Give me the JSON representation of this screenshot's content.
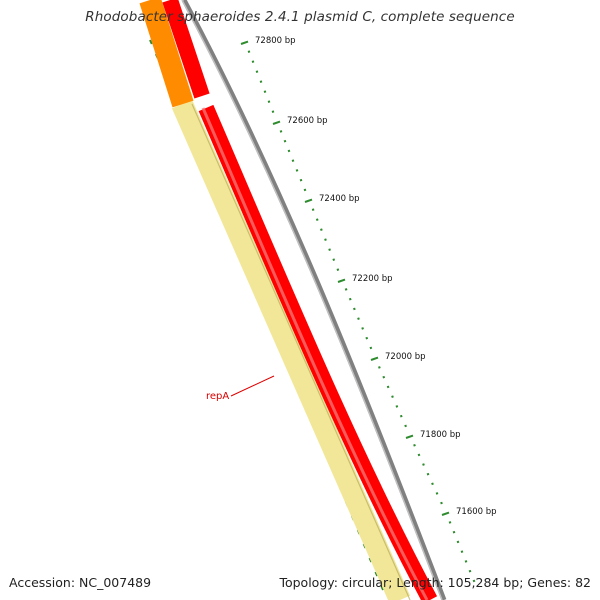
{
  "title": "Rhodobacter sphaeroides 2.4.1 plasmid C, complete sequence",
  "footer": {
    "accession": "Accession: NC_007489",
    "summary": "Topology: circular; Length: 105,284 bp; Genes: 82"
  },
  "scale_labels": [
    "72800 bp",
    "72600 bp",
    "72400 bp",
    "72200 bp",
    "72000 bp",
    "71800 bp",
    "71600 bp"
  ],
  "genes": [
    {
      "name": "repA",
      "color": "#dd0000"
    }
  ],
  "colors": {
    "forward_cds": "#ff0000",
    "backbone": "#808080",
    "reverse_cds": "#f2e799",
    "reverse_upstream": "#ff8c00",
    "gc_ticks": "#2e8b2e",
    "label_line": "#dd0000"
  }
}
